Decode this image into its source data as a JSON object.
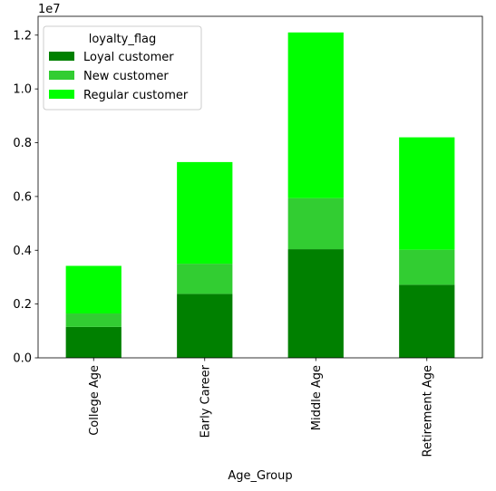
{
  "chart_data": {
    "type": "bar",
    "stacked": true,
    "categories": [
      "College Age",
      "Early Career",
      "Middle Age",
      "Retirement Age"
    ],
    "series": [
      {
        "name": "Loyal customer",
        "color": "#008000",
        "values": [
          1150000,
          2380000,
          4040000,
          2720000
        ]
      },
      {
        "name": "New customer",
        "color": "#32cd32",
        "values": [
          500000,
          1120000,
          1900000,
          1300000
        ]
      },
      {
        "name": "Regular customer",
        "color": "#00ff00",
        "values": [
          1770000,
          3780000,
          6160000,
          4180000
        ]
      }
    ],
    "xlabel": "Age_Group",
    "ylabel": "",
    "ylim": [
      0,
      12700000
    ],
    "yticks": [
      0,
      2000000,
      4000000,
      6000000,
      8000000,
      10000000,
      12000000
    ],
    "ytick_labels": [
      "0.0",
      "0.2",
      "0.4",
      "0.6",
      "0.8",
      "1.0",
      "1.2"
    ],
    "y_offset_label": "1e7",
    "legend": {
      "title": "loyalty_flag",
      "position": "top-left"
    },
    "grid": false
  }
}
